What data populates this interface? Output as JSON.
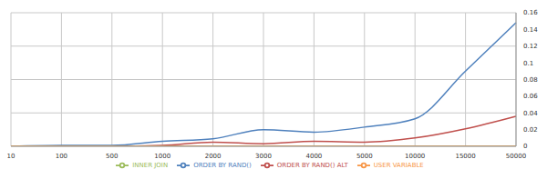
{
  "chart_data": {
    "type": "line",
    "categories": [
      "10",
      "100",
      "500",
      "1000",
      "2000",
      "3000",
      "4000",
      "5000",
      "10000",
      "15000",
      "50000"
    ],
    "series": [
      {
        "name": "ORDER BY RAND()",
        "color": "#4f81bd",
        "values": [
          0,
          0.001,
          0.001,
          0.006,
          0.009,
          0.02,
          0.017,
          0.023,
          0.033,
          0.09,
          0.148
        ]
      },
      {
        "name": "ORDER BY RAND() ALT",
        "color": "#c0504d",
        "values": [
          0,
          0,
          0,
          0.001,
          0.005,
          0.003,
          0.006,
          0.005,
          0.01,
          0.021,
          0.036
        ]
      },
      {
        "name": "INNER JOIN",
        "color": "#9bbb59",
        "values": [
          0,
          0,
          0,
          0,
          0,
          0,
          0,
          0,
          0,
          0,
          0
        ]
      },
      {
        "name": "USER VARIABLE",
        "color": "#f79646",
        "values": [
          0,
          0,
          0,
          0,
          0,
          0,
          0,
          0,
          0,
          0,
          0
        ]
      }
    ],
    "ylim": [
      0,
      0.16
    ],
    "yticks": [
      0,
      0.02,
      0.04,
      0.06,
      0.08,
      0.1,
      0.12,
      0.14,
      0.16
    ],
    "grid": true,
    "legend": "bottom",
    "line_style": "smooth"
  }
}
